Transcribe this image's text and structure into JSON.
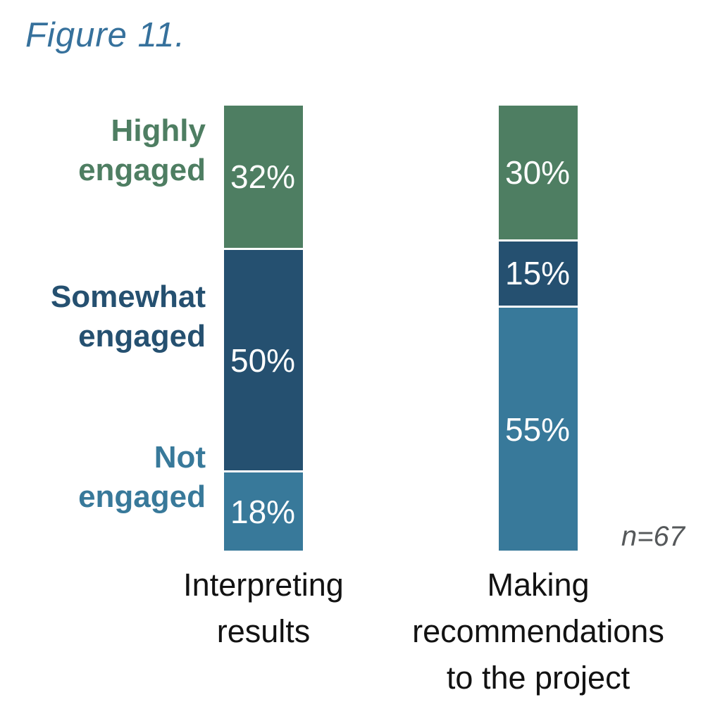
{
  "title": "Figure 11.",
  "note": "n=67",
  "colors": {
    "title": "#36719c",
    "note": "#55585a",
    "value_label": "#ffffff",
    "category_label": "#121212",
    "separator": "#ffffff",
    "background": "#ffffff"
  },
  "chart_data": {
    "type": "bar",
    "stacked": true,
    "orientation": "vertical",
    "title": "Figure 11.",
    "categories": [
      "Interpreting results",
      "Making recommendations to the project"
    ],
    "category_lines": [
      [
        "Interpreting",
        "results"
      ],
      [
        "Making",
        "recommendations",
        "to the project"
      ]
    ],
    "series": [
      {
        "name": "Highly engaged",
        "lines": [
          "Highly",
          "engaged"
        ],
        "color": "#4e7e62",
        "values": [
          32,
          30
        ]
      },
      {
        "name": "Somewhat engaged",
        "lines": [
          "Somewhat",
          "engaged"
        ],
        "color": "#255070",
        "values": [
          50,
          15
        ]
      },
      {
        "name": "Not engaged",
        "lines": [
          "Not",
          "engaged"
        ],
        "color": "#38799a",
        "values": [
          18,
          55
        ]
      }
    ],
    "value_suffix": "%",
    "ylim": [
      0,
      100
    ],
    "grid": false,
    "legend_position": "left",
    "annotation": "n=67"
  }
}
